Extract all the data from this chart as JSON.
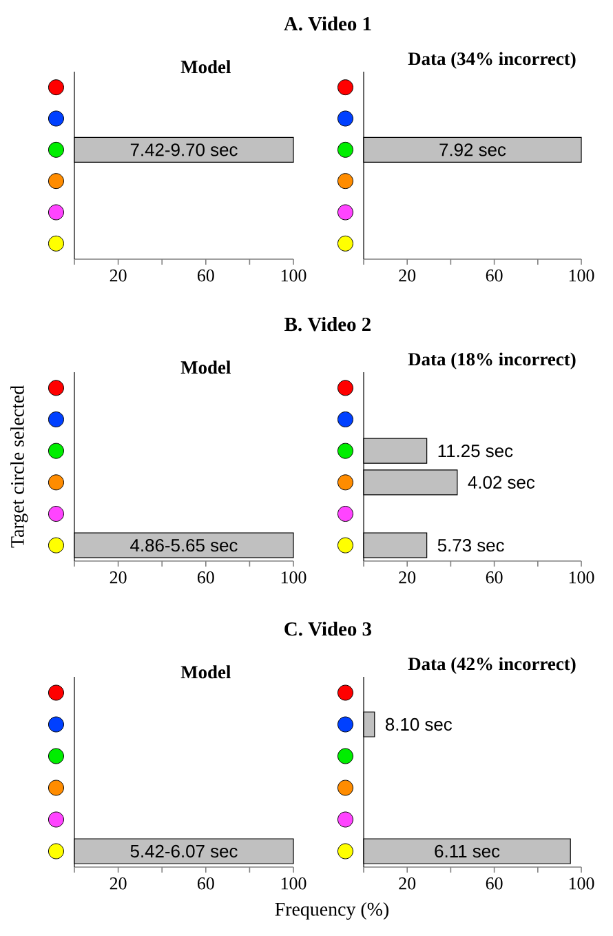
{
  "chart_data": [
    {
      "type": "bar",
      "orientation": "horizontal",
      "title": "A. Video 1",
      "subtitle": "Model",
      "categories": [
        null,
        null,
        null,
        null,
        null,
        null
      ],
      "values": [
        0,
        0,
        100,
        0,
        0,
        0
      ],
      "annotations": [
        "7.42-9.70 sec"
      ],
      "color": "#c0c0c0",
      "xlim": [
        0,
        100
      ],
      "xticks": [
        {
          "value": 0,
          "label": null
        },
        20,
        {
          "value": 40,
          "label": null
        },
        60,
        {
          "value": 80,
          "label": null
        },
        100
      ]
    },
    {
      "type": "bar",
      "orientation": "horizontal",
      "title": "Data (34% incorrect)",
      "categories": [
        null,
        null,
        null,
        null,
        null,
        null
      ],
      "values": [
        0,
        0,
        100,
        0,
        0,
        0
      ],
      "annotations": [
        "7.92 sec"
      ],
      "color": "#c0c0c0",
      "xlim": [
        0,
        100
      ],
      "xticks": [
        {
          "value": 0,
          "label": null
        },
        20,
        {
          "value": 40,
          "label": null
        },
        60,
        {
          "value": 80,
          "label": null
        },
        100
      ]
    },
    {
      "type": "bar",
      "orientation": "horizontal",
      "title": "B. Video 2",
      "subtitle": "Model",
      "ylabel": "Target circle selected",
      "categories": [
        null,
        null,
        null,
        null,
        null,
        null
      ],
      "values": [
        0,
        0,
        0,
        0,
        0,
        100
      ],
      "annotations": [
        "4.86-5.65 sec"
      ],
      "color": "#c0c0c0",
      "xlim": [
        0,
        100
      ],
      "xticks": [
        {
          "value": 0,
          "label": null
        },
        20,
        {
          "value": 40,
          "label": null
        },
        60,
        {
          "value": 80,
          "label": null
        },
        100
      ]
    },
    {
      "type": "bar",
      "orientation": "horizontal",
      "title": "Data (18% incorrect)",
      "categories": [
        null,
        null,
        null,
        null,
        null,
        null
      ],
      "values": [
        0,
        0,
        29,
        43,
        0,
        29
      ],
      "annotations": [
        {
          "text": "11.25 sec",
          "x": 29
        },
        {
          "text": "4.02 sec",
          "x": 43
        },
        {
          "text": "5.73 sec",
          "x": 29
        }
      ],
      "color": "#c0c0c0",
      "xlim": [
        0,
        100
      ],
      "xticks": [
        {
          "value": 0,
          "label": null
        },
        20,
        {
          "value": 40,
          "label": null
        },
        60,
        {
          "value": 80,
          "label": null
        },
        100
      ]
    },
    {
      "type": "bar",
      "orientation": "horizontal",
      "title": "C. Video 3",
      "subtitle": "Model",
      "xlabel": "Frequency  (%)",
      "categories": [
        null,
        null,
        null,
        null,
        null,
        null
      ],
      "values": [
        0,
        0,
        0,
        0,
        0,
        100
      ],
      "annotations": [
        "5.42-6.07 sec"
      ],
      "color": "#c0c0c0",
      "xlim": [
        0,
        100
      ],
      "xticks": [
        {
          "value": 0,
          "label": null
        },
        20,
        {
          "value": 40,
          "label": null
        },
        60,
        {
          "value": 80,
          "label": null
        },
        100
      ]
    },
    {
      "type": "bar",
      "orientation": "horizontal",
      "title": "Data (42% incorrect)",
      "categories": [
        null,
        null,
        null,
        null,
        null,
        null
      ],
      "values": [
        0,
        5,
        0,
        0,
        0,
        95
      ],
      "annotations": [
        {
          "text": "8.10 sec",
          "x": 5
        },
        "6.11 sec"
      ],
      "color": "#c0c0c0",
      "xlim": [
        0,
        100
      ],
      "xticks": [
        {
          "value": 0,
          "label": null
        },
        20,
        {
          "value": 40,
          "label": null
        },
        60,
        {
          "value": 80,
          "label": null
        },
        100
      ]
    }
  ]
}
